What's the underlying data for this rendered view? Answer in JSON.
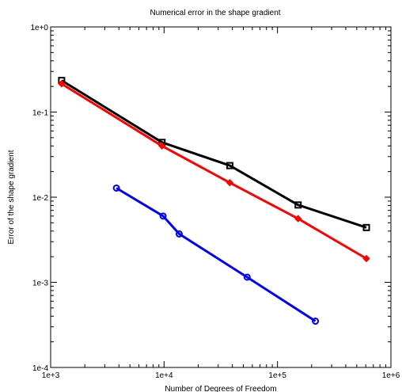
{
  "chart_data": {
    "type": "line",
    "title": "Numerical error in the shape gradient",
    "xlabel": "Number of Degrees of Freedom",
    "ylabel": "Error of the shape gradient",
    "x_scale": "log",
    "y_scale": "log",
    "xlim": [
      1000,
      1000000
    ],
    "ylim": [
      0.0001,
      1
    ],
    "x_tick_labels": [
      "1e+3",
      "1e+4",
      "1e+5",
      "1e+6"
    ],
    "y_tick_labels": [
      "1e-4",
      "1e-3",
      "1e-2",
      "1e-1",
      "1e+0"
    ],
    "grid": false,
    "legend": "none",
    "series": [
      {
        "color": "#000000",
        "marker": "square",
        "x": [
          1250,
          9600,
          38000,
          152000,
          608000
        ],
        "y": [
          0.235,
          0.044,
          0.0235,
          0.0081,
          0.0044
        ]
      },
      {
        "color": "#ff0000",
        "marker": "diamond",
        "x": [
          1250,
          9600,
          38000,
          152000,
          608000
        ],
        "y": [
          0.215,
          0.04,
          0.0148,
          0.0056,
          0.0019
        ]
      },
      {
        "color": "#0000ff",
        "marker": "circle",
        "x": [
          3800,
          9800,
          13600,
          54000,
          216000
        ],
        "y": [
          0.0128,
          0.006,
          0.0037,
          0.00115,
          0.00035
        ]
      }
    ]
  }
}
